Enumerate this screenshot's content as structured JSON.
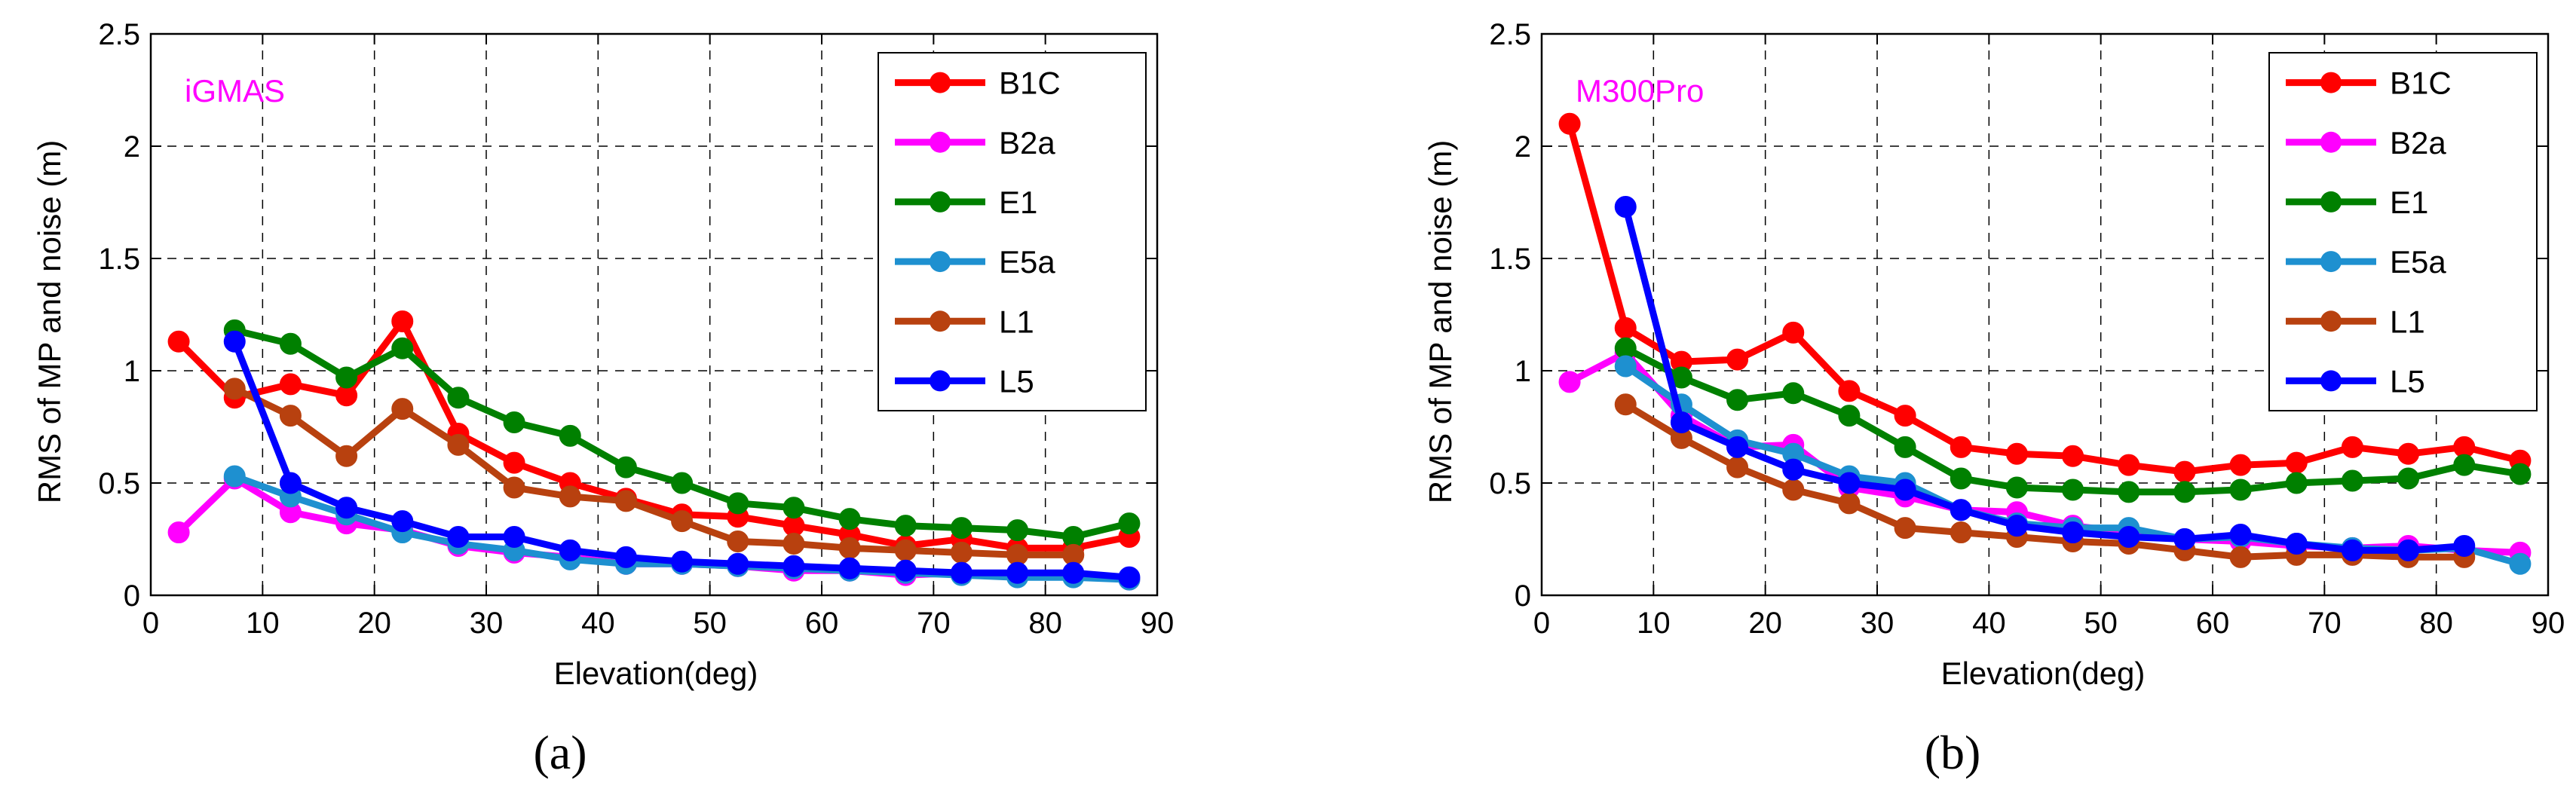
{
  "chart_data": [
    {
      "type": "line",
      "panel_label": "(a)",
      "annotation": "iGMAS",
      "annotation_color": "#ff00ff",
      "xlabel": "Elevation(deg)",
      "ylabel": "RMS of MP and noise (m)",
      "xlim": [
        0,
        90
      ],
      "ylim": [
        0,
        2.5
      ],
      "xticks": [
        0,
        10,
        20,
        30,
        40,
        50,
        60,
        70,
        80,
        90
      ],
      "yticks": [
        0,
        0.5,
        1,
        1.5,
        2,
        2.5
      ],
      "xtick_labels": [
        "0",
        "10",
        "20",
        "30",
        "40",
        "50",
        "60",
        "70",
        "80",
        "90"
      ],
      "ytick_labels": [
        "0",
        "0.5",
        "1",
        "1.5",
        "2",
        "2.5"
      ],
      "grid": true,
      "legend_position": "top-right",
      "series": [
        {
          "name": "B1C",
          "color": "#ff0000",
          "x": [
            2.5,
            7.5,
            12.5,
            17.5,
            22.5,
            27.5,
            32.5,
            37.5,
            42.5,
            47.5,
            52.5,
            57.5,
            62.5,
            67.5,
            72.5,
            77.5,
            82.5,
            87.5
          ],
          "values": [
            1.13,
            0.88,
            0.94,
            0.89,
            1.22,
            0.72,
            0.59,
            0.5,
            0.43,
            0.36,
            0.35,
            0.31,
            0.27,
            0.22,
            0.25,
            0.21,
            0.21,
            0.26
          ]
        },
        {
          "name": "B2a",
          "color": "#ff00ff",
          "x": [
            2.5,
            7.5,
            12.5,
            17.5,
            22.5,
            27.5,
            32.5,
            37.5,
            42.5,
            47.5,
            52.5,
            57.5,
            62.5,
            67.5,
            72.5,
            77.5,
            82.5,
            87.5
          ],
          "values": [
            0.28,
            0.52,
            0.37,
            0.32,
            0.29,
            0.22,
            0.19,
            0.17,
            0.14,
            0.14,
            0.13,
            0.11,
            0.11,
            0.09,
            0.1,
            0.09,
            0.09,
            0.07
          ]
        },
        {
          "name": "E1",
          "color": "#008000",
          "x": [
            7.5,
            12.5,
            17.5,
            22.5,
            27.5,
            32.5,
            37.5,
            42.5,
            47.5,
            52.5,
            57.5,
            62.5,
            67.5,
            72.5,
            77.5,
            82.5,
            87.5
          ],
          "values": [
            1.18,
            1.12,
            0.97,
            1.1,
            0.88,
            0.77,
            0.71,
            0.57,
            0.5,
            0.41,
            0.39,
            0.34,
            0.31,
            0.3,
            0.29,
            0.26,
            0.32
          ]
        },
        {
          "name": "E5a",
          "color": "#1e90d0",
          "x": [
            7.5,
            12.5,
            17.5,
            22.5,
            27.5,
            32.5,
            37.5,
            42.5,
            47.5,
            52.5,
            57.5,
            62.5,
            67.5,
            72.5,
            77.5,
            82.5,
            87.5
          ],
          "values": [
            0.53,
            0.44,
            0.36,
            0.28,
            0.23,
            0.2,
            0.16,
            0.14,
            0.14,
            0.13,
            0.12,
            0.11,
            0.1,
            0.09,
            0.08,
            0.08,
            0.07
          ]
        },
        {
          "name": "L1",
          "color": "#b8410f",
          "x": [
            7.5,
            12.5,
            17.5,
            22.5,
            27.5,
            32.5,
            37.5,
            42.5,
            47.5,
            52.5,
            57.5,
            62.5,
            67.5,
            72.5,
            77.5,
            82.5
          ],
          "values": [
            0.92,
            0.8,
            0.62,
            0.83,
            0.67,
            0.48,
            0.44,
            0.42,
            0.33,
            0.24,
            0.23,
            0.21,
            0.2,
            0.19,
            0.18,
            0.18
          ]
        },
        {
          "name": "L5",
          "color": "#0000ff",
          "x": [
            7.5,
            12.5,
            17.5,
            22.5,
            27.5,
            32.5,
            37.5,
            42.5,
            47.5,
            52.5,
            57.5,
            62.5,
            67.5,
            72.5,
            77.5,
            82.5,
            87.5
          ],
          "values": [
            1.13,
            0.5,
            0.39,
            0.33,
            0.26,
            0.26,
            0.2,
            0.17,
            0.15,
            0.14,
            0.13,
            0.12,
            0.11,
            0.1,
            0.1,
            0.1,
            0.08
          ]
        }
      ]
    },
    {
      "type": "line",
      "panel_label": "(b)",
      "annotation": "M300Pro",
      "annotation_color": "#ff00ff",
      "xlabel": "Elevation(deg)",
      "ylabel": "RMS of MP and noise (m)",
      "xlim": [
        0,
        90
      ],
      "ylim": [
        0,
        2.5
      ],
      "xticks": [
        0,
        10,
        20,
        30,
        40,
        50,
        60,
        70,
        80,
        90
      ],
      "yticks": [
        0,
        0.5,
        1,
        1.5,
        2,
        2.5
      ],
      "xtick_labels": [
        "0",
        "10",
        "20",
        "30",
        "40",
        "50",
        "60",
        "70",
        "80",
        "90"
      ],
      "ytick_labels": [
        "0",
        "0.5",
        "1",
        "1.5",
        "2",
        "2.5"
      ],
      "grid": true,
      "legend_position": "top-right",
      "series": [
        {
          "name": "B1C",
          "color": "#ff0000",
          "x": [
            2.5,
            7.5,
            12.5,
            17.5,
            22.5,
            27.5,
            32.5,
            37.5,
            42.5,
            47.5,
            52.5,
            57.5,
            62.5,
            67.5,
            72.5,
            77.5,
            82.5,
            87.5
          ],
          "values": [
            2.1,
            1.19,
            1.04,
            1.05,
            1.17,
            0.91,
            0.8,
            0.66,
            0.63,
            0.62,
            0.58,
            0.55,
            0.58,
            0.59,
            0.66,
            0.63,
            0.66,
            0.6
          ]
        },
        {
          "name": "B2a",
          "color": "#ff00ff",
          "x": [
            2.5,
            7.5,
            12.5,
            17.5,
            22.5,
            27.5,
            32.5,
            37.5,
            42.5,
            47.5,
            52.5,
            57.5,
            62.5,
            67.5,
            72.5,
            77.5,
            82.5,
            87.5
          ],
          "values": [
            0.95,
            1.08,
            0.8,
            0.66,
            0.67,
            0.48,
            0.44,
            0.38,
            0.37,
            0.31,
            0.28,
            0.25,
            0.24,
            0.22,
            0.21,
            0.22,
            0.2,
            0.19
          ]
        },
        {
          "name": "E1",
          "color": "#008000",
          "x": [
            7.5,
            12.5,
            17.5,
            22.5,
            27.5,
            32.5,
            37.5,
            42.5,
            47.5,
            52.5,
            57.5,
            62.5,
            67.5,
            72.5,
            77.5,
            82.5,
            87.5
          ],
          "values": [
            1.1,
            0.97,
            0.87,
            0.9,
            0.8,
            0.66,
            0.52,
            0.48,
            0.47,
            0.46,
            0.46,
            0.47,
            0.5,
            0.51,
            0.52,
            0.58,
            0.54
          ]
        },
        {
          "name": "E5a",
          "color": "#1e90d0",
          "x": [
            7.5,
            12.5,
            17.5,
            22.5,
            27.5,
            32.5,
            37.5,
            42.5,
            47.5,
            52.5,
            57.5,
            62.5,
            67.5,
            72.5,
            77.5,
            82.5,
            87.5
          ],
          "values": [
            1.02,
            0.85,
            0.69,
            0.63,
            0.53,
            0.5,
            0.38,
            0.32,
            0.3,
            0.3,
            0.25,
            0.26,
            0.23,
            0.21,
            0.2,
            0.21,
            0.14
          ]
        },
        {
          "name": "L1",
          "color": "#b8410f",
          "x": [
            7.5,
            12.5,
            17.5,
            22.5,
            27.5,
            32.5,
            37.5,
            42.5,
            47.5,
            52.5,
            57.5,
            62.5,
            67.5,
            72.5,
            77.5,
            82.5
          ],
          "values": [
            0.85,
            0.7,
            0.57,
            0.47,
            0.41,
            0.3,
            0.28,
            0.26,
            0.24,
            0.23,
            0.2,
            0.17,
            0.18,
            0.18,
            0.17,
            0.17
          ]
        },
        {
          "name": "L5",
          "color": "#0000ff",
          "x": [
            7.5,
            12.5,
            17.5,
            22.5,
            27.5,
            32.5,
            37.5,
            42.5,
            47.5,
            52.5,
            57.5,
            62.5,
            67.5,
            72.5,
            77.5,
            82.5
          ],
          "values": [
            1.73,
            0.77,
            0.66,
            0.56,
            0.5,
            0.47,
            0.38,
            0.31,
            0.28,
            0.26,
            0.25,
            0.27,
            0.23,
            0.2,
            0.2,
            0.22
          ]
        }
      ]
    }
  ]
}
